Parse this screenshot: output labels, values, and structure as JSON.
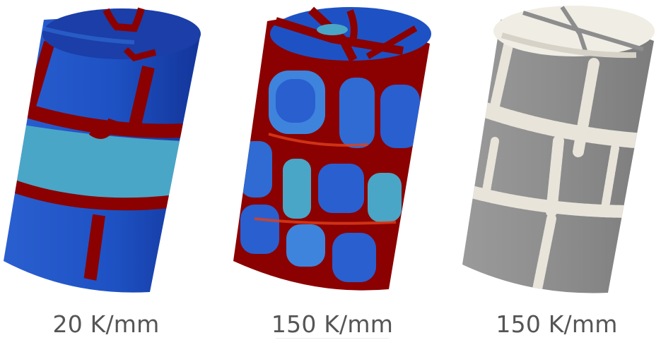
{
  "panels": [
    {
      "label": "20 K/mm",
      "icon": "temperature-cylinder-icon"
    },
    {
      "label": "150 K/mm",
      "icon": "temperature-cylinder-icon"
    },
    {
      "label": "150 K/mm",
      "icon": "fractured-cylinder-icon"
    }
  ],
  "colors": {
    "cold": "#1f4fc2",
    "mid": "#4aa6c6",
    "hot": "#8b0000",
    "warm": "#e0401a",
    "fracture": "#e8e4da",
    "solid": "#8d8d8d"
  }
}
